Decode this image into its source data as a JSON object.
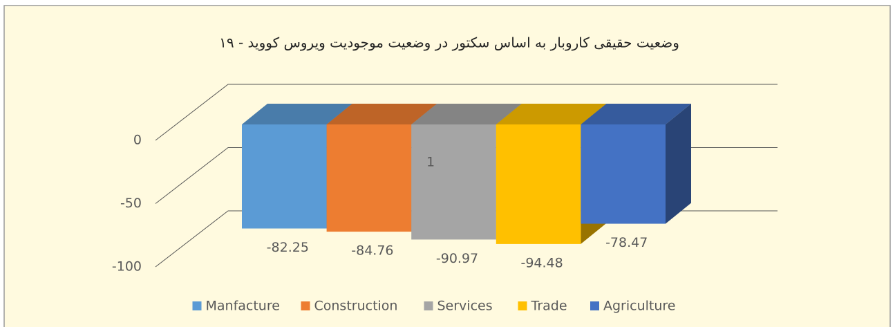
{
  "chart_data": {
    "type": "bar3d",
    "title": "وضعیت حقیقی کاروبار به اساس سکتور در وضعیت موجودیت ویروس کووید - ۱۹",
    "categories": [
      "1"
    ],
    "series": [
      {
        "name": "Manfacture",
        "color": "#5b9bd5",
        "values": [
          -82.25
        ]
      },
      {
        "name": "Construction",
        "color": "#ed7d31",
        "values": [
          -84.76
        ]
      },
      {
        "name": "Services",
        "color": "#a5a5a5",
        "values": [
          -90.97
        ]
      },
      {
        "name": "Trade",
        "color": "#ffc000",
        "values": [
          -94.48
        ]
      },
      {
        "name": "Agriculture",
        "color": "#4472c4",
        "values": [
          -78.47
        ]
      }
    ],
    "ylim": [
      -100,
      0
    ],
    "yticks": [
      0,
      -50,
      -100
    ],
    "grid": true,
    "legend": "bottom"
  }
}
